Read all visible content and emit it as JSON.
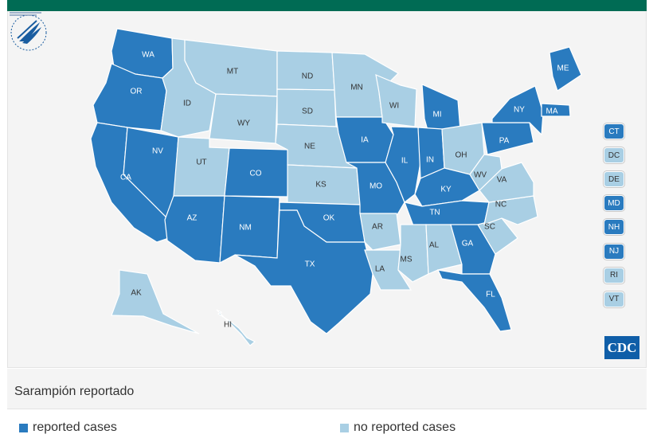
{
  "colors": {
    "reported": "#2a7bbf",
    "none": "#a9cfe4",
    "border": "#ffffff",
    "topbar": "#006b54"
  },
  "caption": {
    "title": "Sarampión reportado"
  },
  "legend": {
    "reported_label": "reported cases",
    "none_label": "no reported cases"
  },
  "states": {
    "WA": "reported",
    "OR": "reported",
    "CA": "reported",
    "NV": "reported",
    "ID": "none",
    "MT": "none",
    "WY": "none",
    "UT": "none",
    "AZ": "reported",
    "CO": "reported",
    "NM": "reported",
    "ND": "none",
    "SD": "none",
    "NE": "none",
    "KS": "none",
    "OK": "reported",
    "TX": "reported",
    "MN": "none",
    "IA": "reported",
    "MO": "reported",
    "AR": "none",
    "LA": "none",
    "WI": "none",
    "IL": "reported",
    "MI": "reported",
    "IN": "reported",
    "OH": "none",
    "KY": "reported",
    "TN": "reported",
    "MS": "none",
    "AL": "none",
    "GA": "reported",
    "FL": "reported",
    "SC": "none",
    "NC": "none",
    "VA": "none",
    "WV": "none",
    "PA": "reported",
    "NY": "reported",
    "ME": "reported",
    "MA": "reported",
    "AK": "none",
    "HI": "none"
  },
  "small_states": [
    {
      "code": "CT",
      "status": "reported"
    },
    {
      "code": "DC",
      "status": "none"
    },
    {
      "code": "DE",
      "status": "none"
    },
    {
      "code": "MD",
      "status": "reported"
    },
    {
      "code": "NH",
      "status": "reported"
    },
    {
      "code": "NJ",
      "status": "reported"
    },
    {
      "code": "RI",
      "status": "none"
    },
    {
      "code": "VT",
      "status": "none"
    }
  ],
  "logos": {
    "cdc_text": "CDC"
  }
}
